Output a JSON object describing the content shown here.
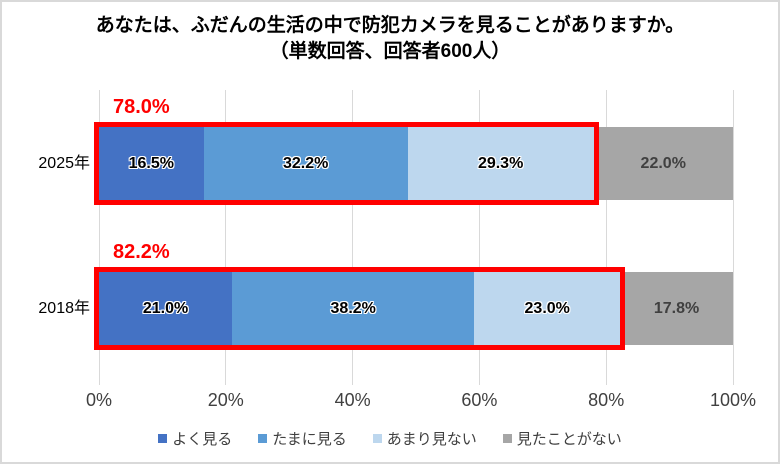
{
  "title": "あなたは、ふだんの生活の中で防犯カメラを見ることがありますか。",
  "subtitle": "（単数回答、回答者600人）",
  "chart_data": {
    "type": "bar",
    "orientation": "horizontal-stacked",
    "title": "あなたは、ふだんの生活の中で防犯カメラを見ることがありますか。",
    "subtitle": "（単数回答、回答者600人）",
    "categories": [
      "2025年",
      "2018年"
    ],
    "series": [
      {
        "name": "よく見る",
        "color": "#4472C4",
        "label_style": "outlined",
        "values": [
          16.5,
          21.0
        ]
      },
      {
        "name": "たまに見る",
        "color": "#5B9BD5",
        "label_style": "outlined",
        "values": [
          32.2,
          38.2
        ]
      },
      {
        "name": "あまり見ない",
        "color": "#BDD7EE",
        "label_style": "outlined",
        "values": [
          29.3,
          23.0
        ]
      },
      {
        "name": "見たことがない",
        "color": "#A6A6A6",
        "label_style": "plain",
        "values": [
          22.0,
          17.8
        ]
      }
    ],
    "highlight": {
      "span_series": 3,
      "totals": [
        "78.0%",
        "82.2%"
      ],
      "color": "#FF0000"
    },
    "x_ticks": [
      "0%",
      "20%",
      "40%",
      "60%",
      "80%",
      "100%"
    ],
    "xlim": [
      0,
      100
    ],
    "grid": true,
    "grid_color": "#D9D9D9",
    "legend_position": "bottom"
  }
}
